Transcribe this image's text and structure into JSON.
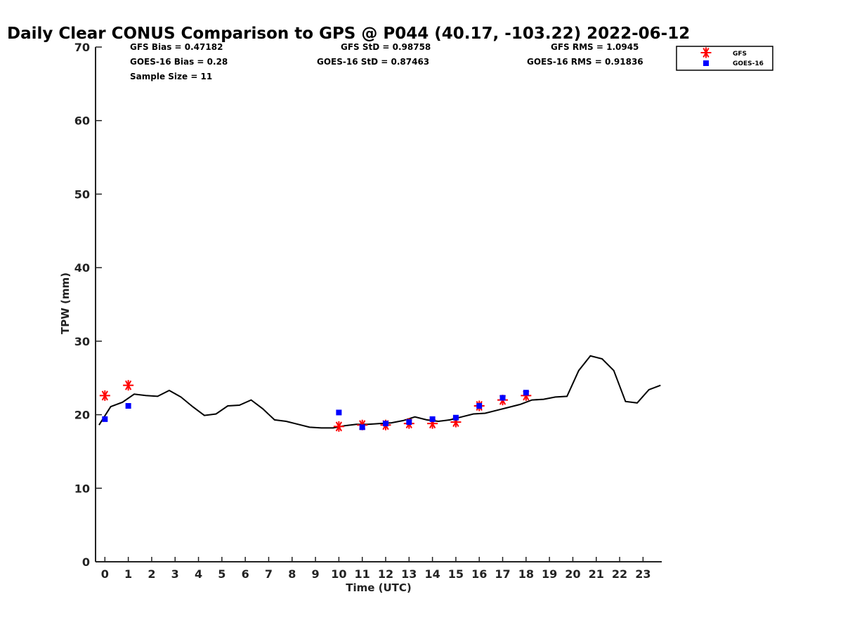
{
  "chart_data": {
    "type": "scatter",
    "title": "Daily Clear CONUS Comparison to GPS @ P044 (40.17, -103.22) 2022-06-12",
    "xlabel": "Time (UTC)",
    "ylabel": "TPW (mm)",
    "xlim": [
      -0.4,
      23.8
    ],
    "ylim": [
      0,
      70
    ],
    "xticks": [
      "0",
      "1",
      "2",
      "3",
      "4",
      "5",
      "6",
      "7",
      "8",
      "9",
      "10",
      "11",
      "12",
      "13",
      "14",
      "15",
      "16",
      "17",
      "18",
      "19",
      "20",
      "21",
      "22",
      "23"
    ],
    "yticks": [
      "0",
      "10",
      "20",
      "30",
      "40",
      "50",
      "60",
      "70"
    ],
    "grid": false,
    "legend_position": "top-right",
    "stats": {
      "gfs_bias": "GFS Bias = 0.47182",
      "goes_bias": "GOES-16 Bias = 0.28",
      "sample_size": "Sample Size = 11",
      "gfs_std": "GFS StD = 0.98758",
      "goes_std": "GOES-16 StD = 0.87463",
      "gfs_rms": "GFS RMS = 1.0945",
      "goes_rms": "GOES-16 RMS = 0.91836"
    },
    "series": [
      {
        "name": "GFS",
        "marker": "asterisk",
        "color": "#ff0000",
        "x": [
          0,
          1,
          10,
          11,
          12,
          13,
          14,
          15,
          16,
          17,
          18
        ],
        "y": [
          22.6,
          24.0,
          18.4,
          18.6,
          18.6,
          18.8,
          18.8,
          19.0,
          21.2,
          22.0,
          22.6
        ]
      },
      {
        "name": "GOES-16",
        "marker": "square",
        "color": "#0000ff",
        "x": [
          0,
          1,
          10,
          11,
          12,
          13,
          14,
          15,
          16,
          17,
          18
        ],
        "y": [
          19.4,
          21.2,
          20.3,
          18.3,
          18.8,
          19.0,
          19.4,
          19.6,
          21.2,
          22.3,
          23.0
        ]
      },
      {
        "name": "",
        "marker": "line",
        "color": "#000000",
        "x": [
          -0.25,
          0.25,
          0.75,
          1.25,
          1.75,
          2.25,
          2.75,
          3.25,
          3.75,
          4.25,
          4.75,
          5.25,
          5.75,
          6.25,
          6.75,
          7.25,
          7.75,
          8.25,
          8.75,
          9.25,
          9.75,
          10.25,
          10.75,
          11.25,
          11.75,
          12.25,
          12.75,
          13.25,
          13.75,
          14.25,
          14.75,
          15.25,
          15.75,
          16.25,
          16.75,
          17.25,
          17.75,
          18.25,
          18.75,
          19.25,
          19.75,
          20.25,
          20.75,
          21.25,
          21.75,
          22.25,
          22.75,
          23.25,
          23.75
        ],
        "y": [
          18.6,
          21.1,
          21.7,
          22.8,
          22.6,
          22.5,
          23.3,
          22.4,
          21.1,
          19.9,
          20.1,
          21.2,
          21.3,
          22.0,
          20.8,
          19.3,
          19.1,
          18.7,
          18.3,
          18.2,
          18.2,
          18.5,
          18.7,
          18.7,
          18.8,
          18.9,
          19.2,
          19.7,
          19.3,
          19.1,
          19.3,
          19.7,
          20.1,
          20.2,
          20.6,
          21.0,
          21.4,
          22.0,
          22.1,
          22.4,
          22.5,
          26.0,
          28.0,
          27.6,
          26.0,
          21.8,
          21.6,
          23.4,
          24.0
        ]
      }
    ]
  }
}
